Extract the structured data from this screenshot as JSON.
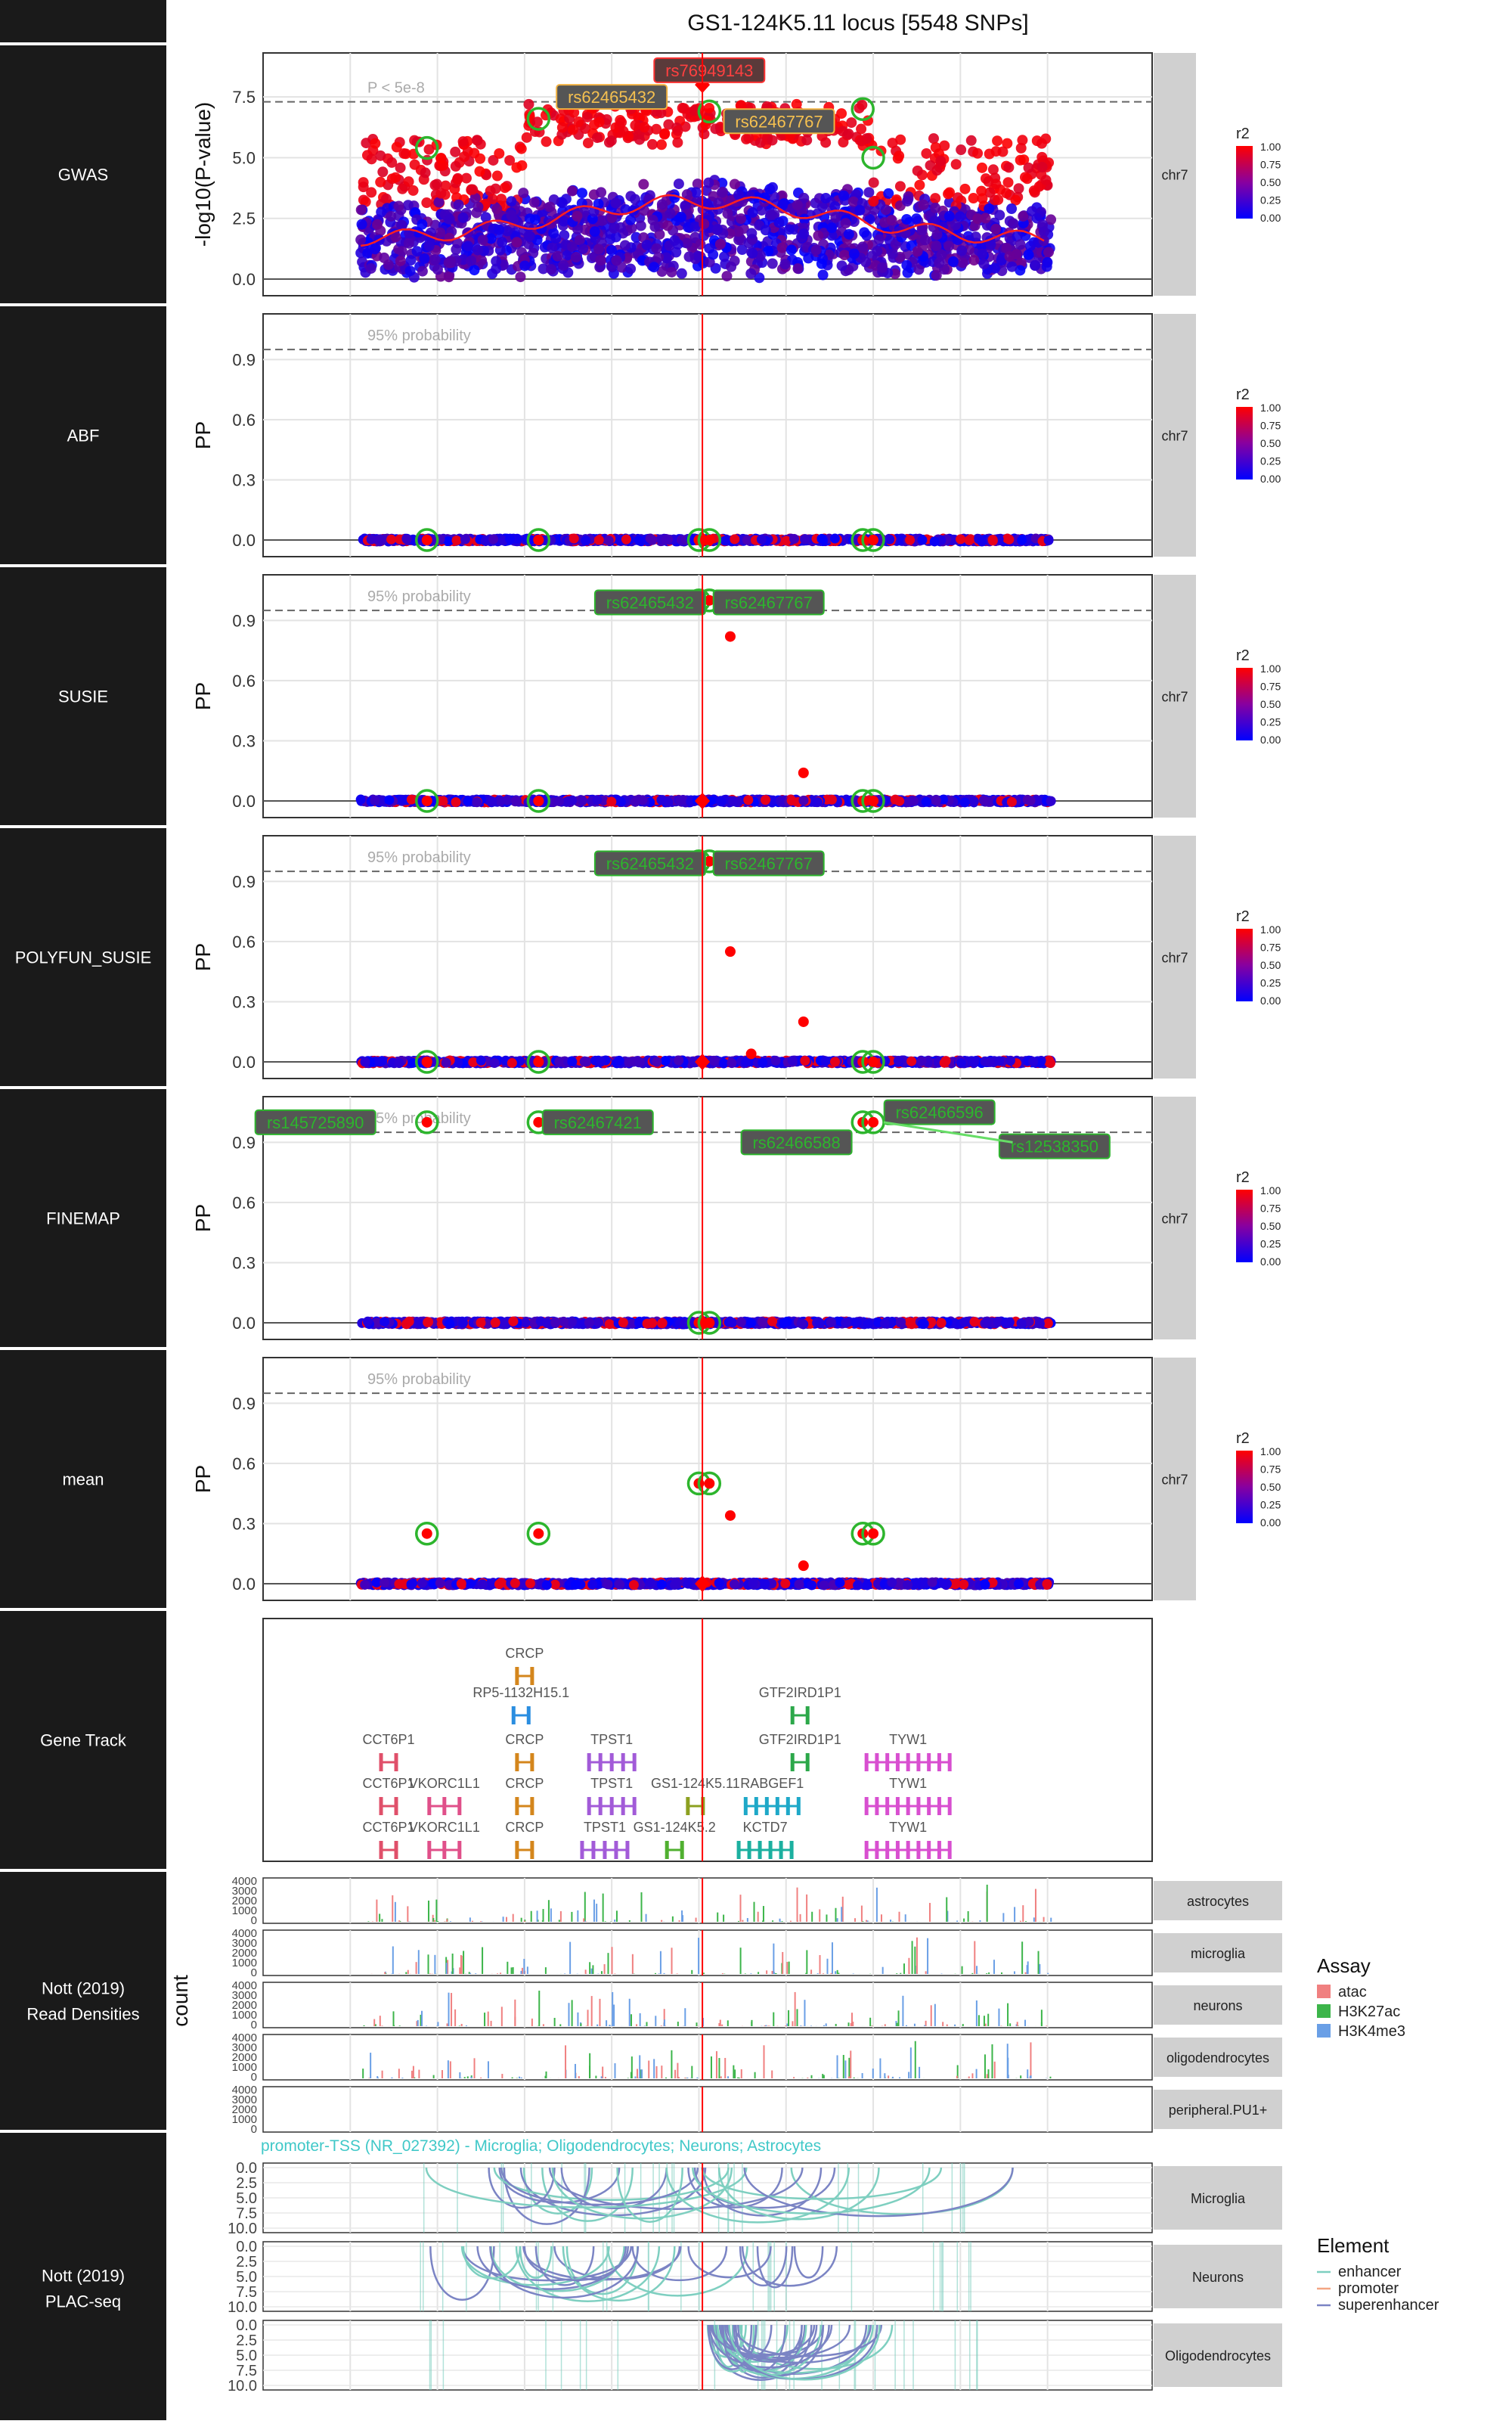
{
  "title": "GS1-124K5.11 locus [5548 SNPs]",
  "chromosome": "chr7",
  "lead_snp_position": 66.01,
  "x_axis": {
    "ticks": [
      65,
      65.5,
      66,
      66.5,
      67
    ],
    "range": [
      64.75,
      67.3
    ]
  },
  "colors": {
    "panel_label_bg": "#1a1a1a",
    "facet_strip": "#d0d0d0",
    "r2_low": "#0000ff",
    "r2_high": "#ff0000",
    "label_green": "#2db52d",
    "label_box": "#555555",
    "lead_line": "#ff0000",
    "atac": "#f08080",
    "H3K27ac": "#3cb54a",
    "H3K4me3": "#6a9fe6",
    "enhancer": "#7ecfc0",
    "promoter": "#f4a582",
    "superenhancer": "#7b84c4"
  },
  "r2_legend": {
    "title": "r2",
    "ticks": [
      "1.00",
      "0.75",
      "0.50",
      "0.25",
      "0.00"
    ]
  },
  "panels": [
    {
      "label": "GWAS",
      "ylabel": "-log10(P-value)",
      "yticks": [
        "0.0",
        "2.5",
        "5.0",
        "7.5"
      ],
      "ymax": 9.0,
      "threshold": 7.3,
      "threshold_label": "P < 5e-8",
      "snp_labels": [
        {
          "text": "rs76949143",
          "x": 66.03,
          "y": 8.6,
          "style": "red"
        },
        {
          "text": "rs62465432",
          "x": 65.75,
          "y": 7.5,
          "style": "orange"
        },
        {
          "text": "rs62467767",
          "x": 66.23,
          "y": 6.5,
          "style": "orange"
        }
      ],
      "circles": [
        [
          65.22,
          5.4
        ],
        [
          65.54,
          6.6
        ],
        [
          66.03,
          6.9
        ],
        [
          66.47,
          7.0
        ],
        [
          66.5,
          5.0
        ]
      ]
    },
    {
      "label": "ABF",
      "ylabel": "PP",
      "yticks": [
        "0.0",
        "0.3",
        "0.6",
        "0.9"
      ],
      "ymax": 1.09,
      "threshold": 0.95,
      "threshold_label": "95% probability",
      "snp_labels": [],
      "circles": [
        [
          65.22,
          0.0
        ],
        [
          65.54,
          0.0
        ],
        [
          66.0,
          0.0
        ],
        [
          66.03,
          0.0
        ],
        [
          66.47,
          0.0
        ],
        [
          66.5,
          0.0
        ]
      ],
      "points": []
    },
    {
      "label": "SUSIE",
      "ylabel": "PP",
      "yticks": [
        "0.0",
        "0.3",
        "0.6",
        "0.9"
      ],
      "ymax": 1.09,
      "threshold": 0.95,
      "threshold_label": "95% probability",
      "snp_labels": [
        {
          "text": "rs62465432",
          "x": 65.86,
          "y": 0.99,
          "style": "green"
        },
        {
          "text": "rs62467767",
          "x": 66.2,
          "y": 0.99,
          "style": "green"
        }
      ],
      "circles": [
        [
          66.0,
          1.0
        ],
        [
          66.03,
          1.0
        ],
        [
          65.22,
          0.0
        ],
        [
          65.54,
          0.0
        ],
        [
          66.47,
          0.0
        ],
        [
          66.5,
          0.0
        ]
      ],
      "points": [
        [
          66.09,
          0.82
        ],
        [
          66.3,
          0.14
        ]
      ]
    },
    {
      "label": "POLYFUN_SUSIE",
      "ylabel": "PP",
      "yticks": [
        "0.0",
        "0.3",
        "0.6",
        "0.9"
      ],
      "ymax": 1.09,
      "threshold": 0.95,
      "threshold_label": "95% probability",
      "snp_labels": [
        {
          "text": "rs62465432",
          "x": 65.86,
          "y": 0.99,
          "style": "green"
        },
        {
          "text": "rs62467767",
          "x": 66.2,
          "y": 0.99,
          "style": "green"
        }
      ],
      "circles": [
        [
          66.0,
          1.0
        ],
        [
          66.03,
          1.0
        ],
        [
          65.22,
          0.0
        ],
        [
          65.54,
          0.0
        ],
        [
          66.47,
          0.0
        ],
        [
          66.5,
          0.0
        ]
      ],
      "points": [
        [
          66.09,
          0.55
        ],
        [
          66.3,
          0.2
        ],
        [
          66.15,
          0.04
        ]
      ]
    },
    {
      "label": "FINEMAP",
      "ylabel": "PP",
      "yticks": [
        "0.0",
        "0.3",
        "0.6",
        "0.9"
      ],
      "ymax": 1.09,
      "threshold": 0.95,
      "threshold_label": "95% probability",
      "snp_labels": [
        {
          "text": "rs145725890",
          "x": 64.9,
          "y": 1.0,
          "style": "green"
        },
        {
          "text": "rs62467421",
          "x": 65.71,
          "y": 1.0,
          "style": "green"
        },
        {
          "text": "rs62466588",
          "x": 66.28,
          "y": 0.9,
          "style": "green"
        },
        {
          "text": "rs62466596",
          "x": 66.69,
          "y": 1.05,
          "style": "green"
        },
        {
          "text": "rs12538350",
          "x": 67.02,
          "y": 0.88,
          "style": "green"
        }
      ],
      "circles": [
        [
          65.22,
          1.0
        ],
        [
          65.54,
          1.0
        ],
        [
          66.47,
          1.0
        ],
        [
          66.5,
          1.0
        ],
        [
          66.0,
          0.0
        ],
        [
          66.03,
          0.0
        ]
      ],
      "points": []
    },
    {
      "label": "mean",
      "ylabel": "PP",
      "yticks": [
        "0.0",
        "0.3",
        "0.6",
        "0.9"
      ],
      "ymax": 1.09,
      "threshold": 0.95,
      "threshold_label": "95% probability",
      "snp_labels": [],
      "circles": [
        [
          65.22,
          0.25
        ],
        [
          65.54,
          0.25
        ],
        [
          66.0,
          0.5
        ],
        [
          66.03,
          0.5
        ],
        [
          66.47,
          0.25
        ],
        [
          66.5,
          0.25
        ]
      ],
      "points": [
        [
          66.09,
          0.34
        ],
        [
          66.3,
          0.09
        ]
      ]
    }
  ],
  "gene_track": {
    "label": "Gene Track",
    "genes": [
      {
        "name": "CRCP",
        "x": 65.5,
        "row": 0,
        "color": "#d4861c"
      },
      {
        "name": "RP5-1132H15.1",
        "x": 65.49,
        "row": 1,
        "color": "#2b8ee0"
      },
      {
        "name": "GTF2IRD1P1",
        "x": 66.29,
        "row": 1,
        "color": "#2ca84a"
      },
      {
        "name": "CCT6P1",
        "x": 65.11,
        "row": 2,
        "color": "#e0506a"
      },
      {
        "name": "CRCP",
        "x": 65.5,
        "row": 2,
        "color": "#d4861c"
      },
      {
        "name": "TPST1",
        "x": 65.75,
        "row": 2,
        "color": "#a25bd8"
      },
      {
        "name": "GTF2IRD1P1",
        "x": 66.29,
        "row": 2,
        "color": "#2ca84a"
      },
      {
        "name": "TYW1",
        "x": 66.6,
        "row": 2,
        "color": "#d84fd0"
      },
      {
        "name": "CCT6P1",
        "x": 65.11,
        "row": 3,
        "color": "#e0506a"
      },
      {
        "name": "VKORC1L1",
        "x": 65.27,
        "row": 3,
        "color": "#e0508a"
      },
      {
        "name": "CRCP",
        "x": 65.5,
        "row": 3,
        "color": "#d4861c"
      },
      {
        "name": "TPST1",
        "x": 65.75,
        "row": 3,
        "color": "#a25bd8"
      },
      {
        "name": "GS1-124K5.11",
        "x": 65.99,
        "row": 3,
        "color": "#8ca020"
      },
      {
        "name": "RABGEF1",
        "x": 66.21,
        "row": 3,
        "color": "#1ea8c8"
      },
      {
        "name": "TYW1",
        "x": 66.6,
        "row": 3,
        "color": "#d84fd0"
      },
      {
        "name": "CCT6P1",
        "x": 65.11,
        "row": 4,
        "color": "#e0506a"
      },
      {
        "name": "VKORC1L1",
        "x": 65.27,
        "row": 4,
        "color": "#e0508a"
      },
      {
        "name": "CRCP",
        "x": 65.5,
        "row": 4,
        "color": "#d4861c"
      },
      {
        "name": "TPST1",
        "x": 65.73,
        "row": 4,
        "color": "#a25bd8"
      },
      {
        "name": "GS1-124K5.2",
        "x": 65.93,
        "row": 4,
        "color": "#50b030"
      },
      {
        "name": "KCTD7",
        "x": 66.19,
        "row": 4,
        "color": "#1cb0a0"
      },
      {
        "name": "TYW1",
        "x": 66.6,
        "row": 4,
        "color": "#d84fd0"
      }
    ]
  },
  "read_densities": {
    "label": "Nott (2019)\nRead Densities",
    "ylabel": "count",
    "yticks": [
      "0",
      "1000",
      "2000",
      "3000",
      "4000"
    ],
    "tracks": [
      "astrocytes",
      "microglia",
      "neurons",
      "oligodendrocytes",
      "peripheral.PU1+"
    ],
    "legend_title": "Assay",
    "assays": [
      "atac",
      "H3K27ac",
      "H3K4me3"
    ]
  },
  "plac_seq": {
    "label": "Nott (2019)\nPLAC-seq",
    "annotation": "promoter-TSS (NR_027392) - Microglia; Oligodendrocytes; Neurons; Astrocytes",
    "yticks": [
      "0.0",
      "2.5",
      "5.0",
      "7.5",
      "10.0"
    ],
    "tracks": [
      "Microglia",
      "Neurons",
      "Oligodendrocytes"
    ],
    "legend_title": "Element",
    "elements": [
      "enhancer",
      "promoter",
      "superenhancer"
    ]
  }
}
